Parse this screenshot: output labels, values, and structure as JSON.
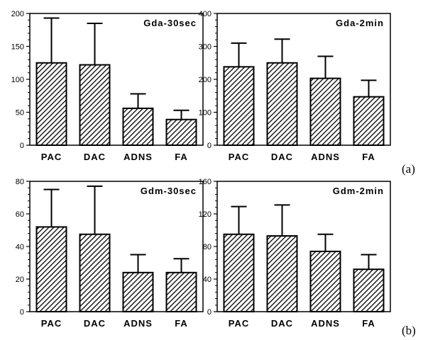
{
  "chart_data": [
    {
      "type": "bar",
      "title": "Gda-30sec",
      "categories": [
        "PAC",
        "DAC",
        "ADNS",
        "FA"
      ],
      "values": [
        125,
        122,
        56,
        39
      ],
      "error_upper": [
        193,
        185,
        78,
        53
      ],
      "ylim": [
        0,
        200
      ],
      "yticks": [
        0,
        50,
        100,
        150,
        200
      ],
      "xlabel": "",
      "ylabel": ""
    },
    {
      "type": "bar",
      "title": "Gda-2min",
      "categories": [
        "PAC",
        "DAC",
        "ADNS",
        "FA"
      ],
      "values": [
        238,
        250,
        203,
        147
      ],
      "error_upper": [
        310,
        322,
        270,
        197
      ],
      "ylim": [
        0,
        400
      ],
      "yticks": [
        0,
        100,
        200,
        300,
        400
      ],
      "xlabel": "",
      "ylabel": ""
    },
    {
      "type": "bar",
      "title": "Gdm-30sec",
      "categories": [
        "PAC",
        "DAC",
        "ADNS",
        "FA"
      ],
      "values": [
        52,
        47.5,
        24,
        24
      ],
      "error_upper": [
        75,
        77,
        35,
        32.5
      ],
      "ylim": [
        0,
        80
      ],
      "yticks": [
        0,
        20,
        40,
        60,
        80
      ],
      "xlabel": "",
      "ylabel": ""
    },
    {
      "type": "bar",
      "title": "Gdm-2min",
      "categories": [
        "PAC",
        "DAC",
        "ADNS",
        "FA"
      ],
      "values": [
        95,
        93,
        74,
        52
      ],
      "error_upper": [
        129,
        131,
        95,
        70
      ],
      "ylim": [
        0,
        160
      ],
      "yticks": [
        0,
        40,
        80,
        120,
        160
      ],
      "xlabel": "",
      "ylabel": ""
    }
  ],
  "figure_labels": [
    "(a)",
    "(b)"
  ]
}
